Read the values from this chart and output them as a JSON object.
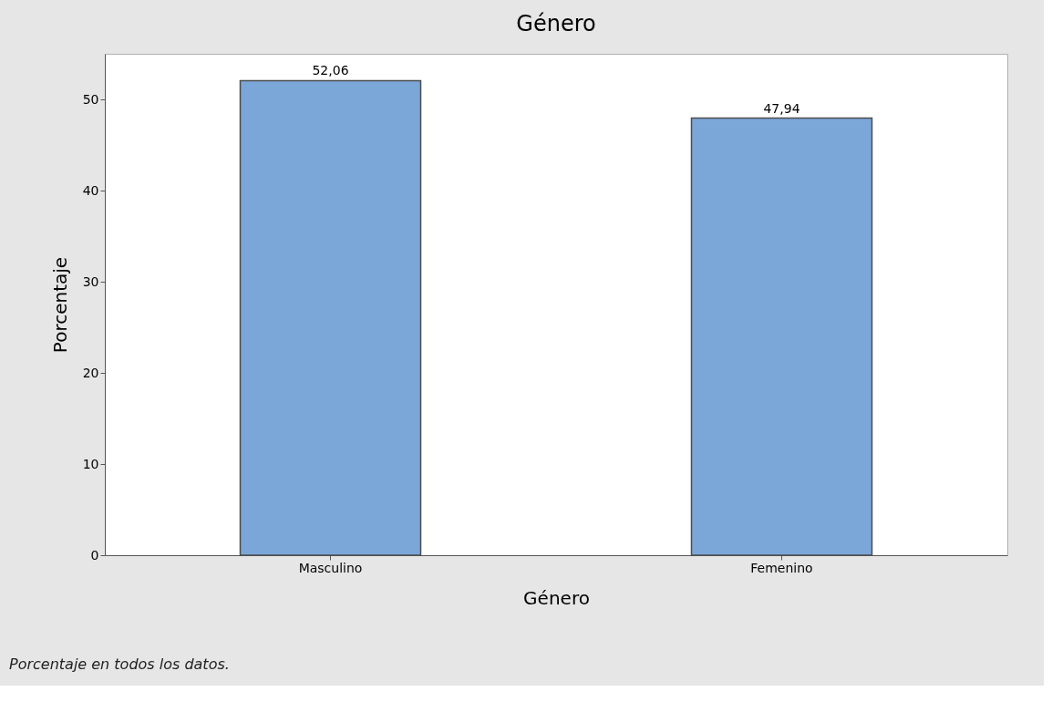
{
  "chart_data": {
    "type": "bar",
    "title": "Género",
    "xlabel": "Género",
    "ylabel": "Porcentaje",
    "categories": [
      "Masculino",
      "Femenino"
    ],
    "values": [
      52.06,
      47.94
    ],
    "color": "#7ba6d8",
    "value_labels": [
      "52,06",
      "47,94"
    ],
    "ylim": [
      0,
      55
    ],
    "yticks": [
      0,
      10,
      20,
      30,
      40,
      50
    ],
    "grid": false,
    "annotations": [
      "Porcentaje en todos los datos."
    ]
  }
}
